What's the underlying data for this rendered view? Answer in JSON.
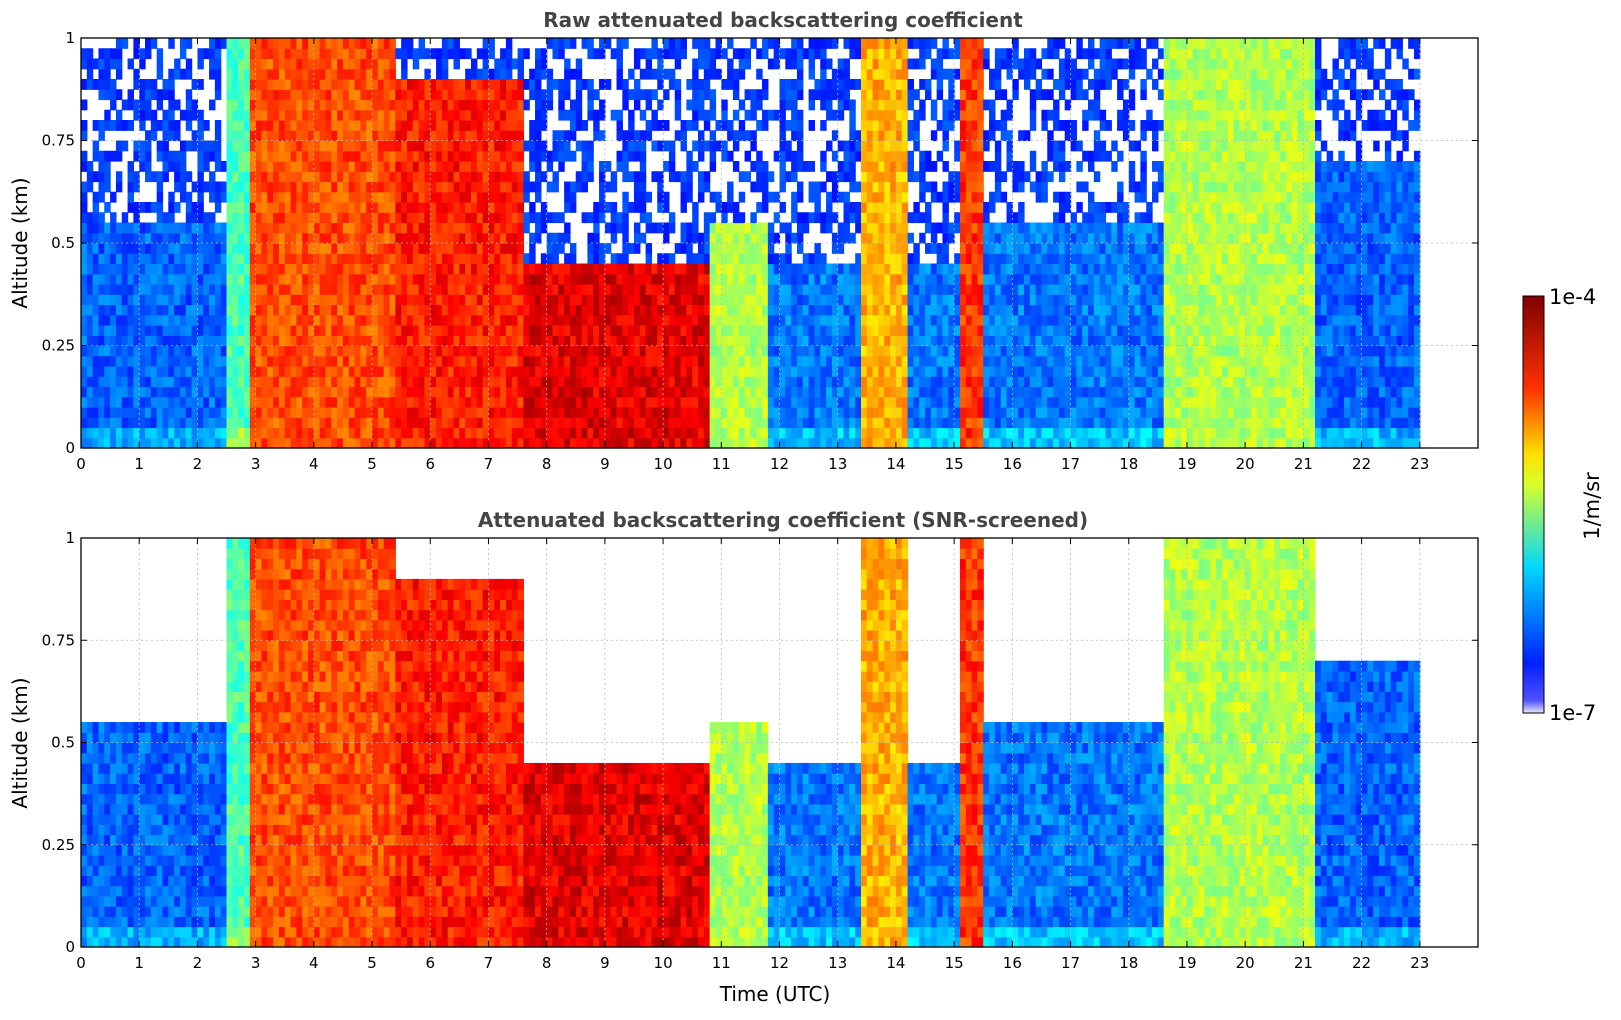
{
  "chart_data": [
    {
      "type": "heatmap",
      "title": "Raw attenuated backscattering coefficient",
      "xlabel": "",
      "ylabel": "Altitude (km)",
      "xlim": [
        0,
        24
      ],
      "ylim": [
        0,
        1
      ],
      "x_ticks": [
        "0",
        "1",
        "2",
        "3",
        "4",
        "5",
        "6",
        "7",
        "8",
        "9",
        "10",
        "11",
        "12",
        "13",
        "14",
        "15",
        "16",
        "17",
        "18",
        "19",
        "20",
        "21",
        "22",
        "23"
      ],
      "y_ticks": [
        "0",
        "0.25",
        "0.5",
        "0.75",
        "1"
      ],
      "grid": true,
      "data_end_hour": 23,
      "screened": false
    },
    {
      "type": "heatmap",
      "title": "Attenuated backscattering coefficient (SNR-screened)",
      "xlabel": "Time (UTC)",
      "ylabel": "Altitude (km)",
      "xlim": [
        0,
        24
      ],
      "ylim": [
        0,
        1
      ],
      "x_ticks": [
        "0",
        "1",
        "2",
        "3",
        "4",
        "5",
        "6",
        "7",
        "8",
        "9",
        "10",
        "11",
        "12",
        "13",
        "14",
        "15",
        "16",
        "17",
        "18",
        "19",
        "20",
        "21",
        "22",
        "23"
      ],
      "y_ticks": [
        "0",
        "0.25",
        "0.5",
        "0.75",
        "1"
      ],
      "grid": true,
      "data_end_hour": 23,
      "screened": true
    }
  ],
  "colorbar": {
    "label": "1/m/sr",
    "max_label": "1e-4",
    "min_label": "1e-7",
    "colormap": "jet",
    "scale": "log"
  },
  "profile_hints": [
    {
      "h0": 0.0,
      "h1": 2.5,
      "level": 0.22,
      "top": 0.55
    },
    {
      "h0": 2.5,
      "h1": 2.9,
      "level": 0.45,
      "top": 1.0
    },
    {
      "h0": 2.9,
      "h1": 5.4,
      "level": 0.8,
      "top": 1.0
    },
    {
      "h0": 5.4,
      "h1": 7.6,
      "level": 0.85,
      "top": 0.9
    },
    {
      "h0": 7.6,
      "h1": 10.8,
      "level": 0.9,
      "top": 0.45
    },
    {
      "h0": 10.8,
      "h1": 11.8,
      "level": 0.55,
      "top": 0.55
    },
    {
      "h0": 11.8,
      "h1": 13.4,
      "level": 0.24,
      "top": 0.45
    },
    {
      "h0": 13.4,
      "h1": 14.2,
      "level": 0.7,
      "top": 1.0
    },
    {
      "h0": 14.2,
      "h1": 15.1,
      "level": 0.24,
      "top": 0.45
    },
    {
      "h0": 15.1,
      "h1": 15.5,
      "level": 0.82,
      "top": 1.0
    },
    {
      "h0": 15.5,
      "h1": 18.6,
      "level": 0.24,
      "top": 0.55
    },
    {
      "h0": 18.6,
      "h1": 21.2,
      "level": 0.55,
      "top": 1.0
    },
    {
      "h0": 21.2,
      "h1": 23.0,
      "level": 0.22,
      "top": 0.7
    }
  ]
}
